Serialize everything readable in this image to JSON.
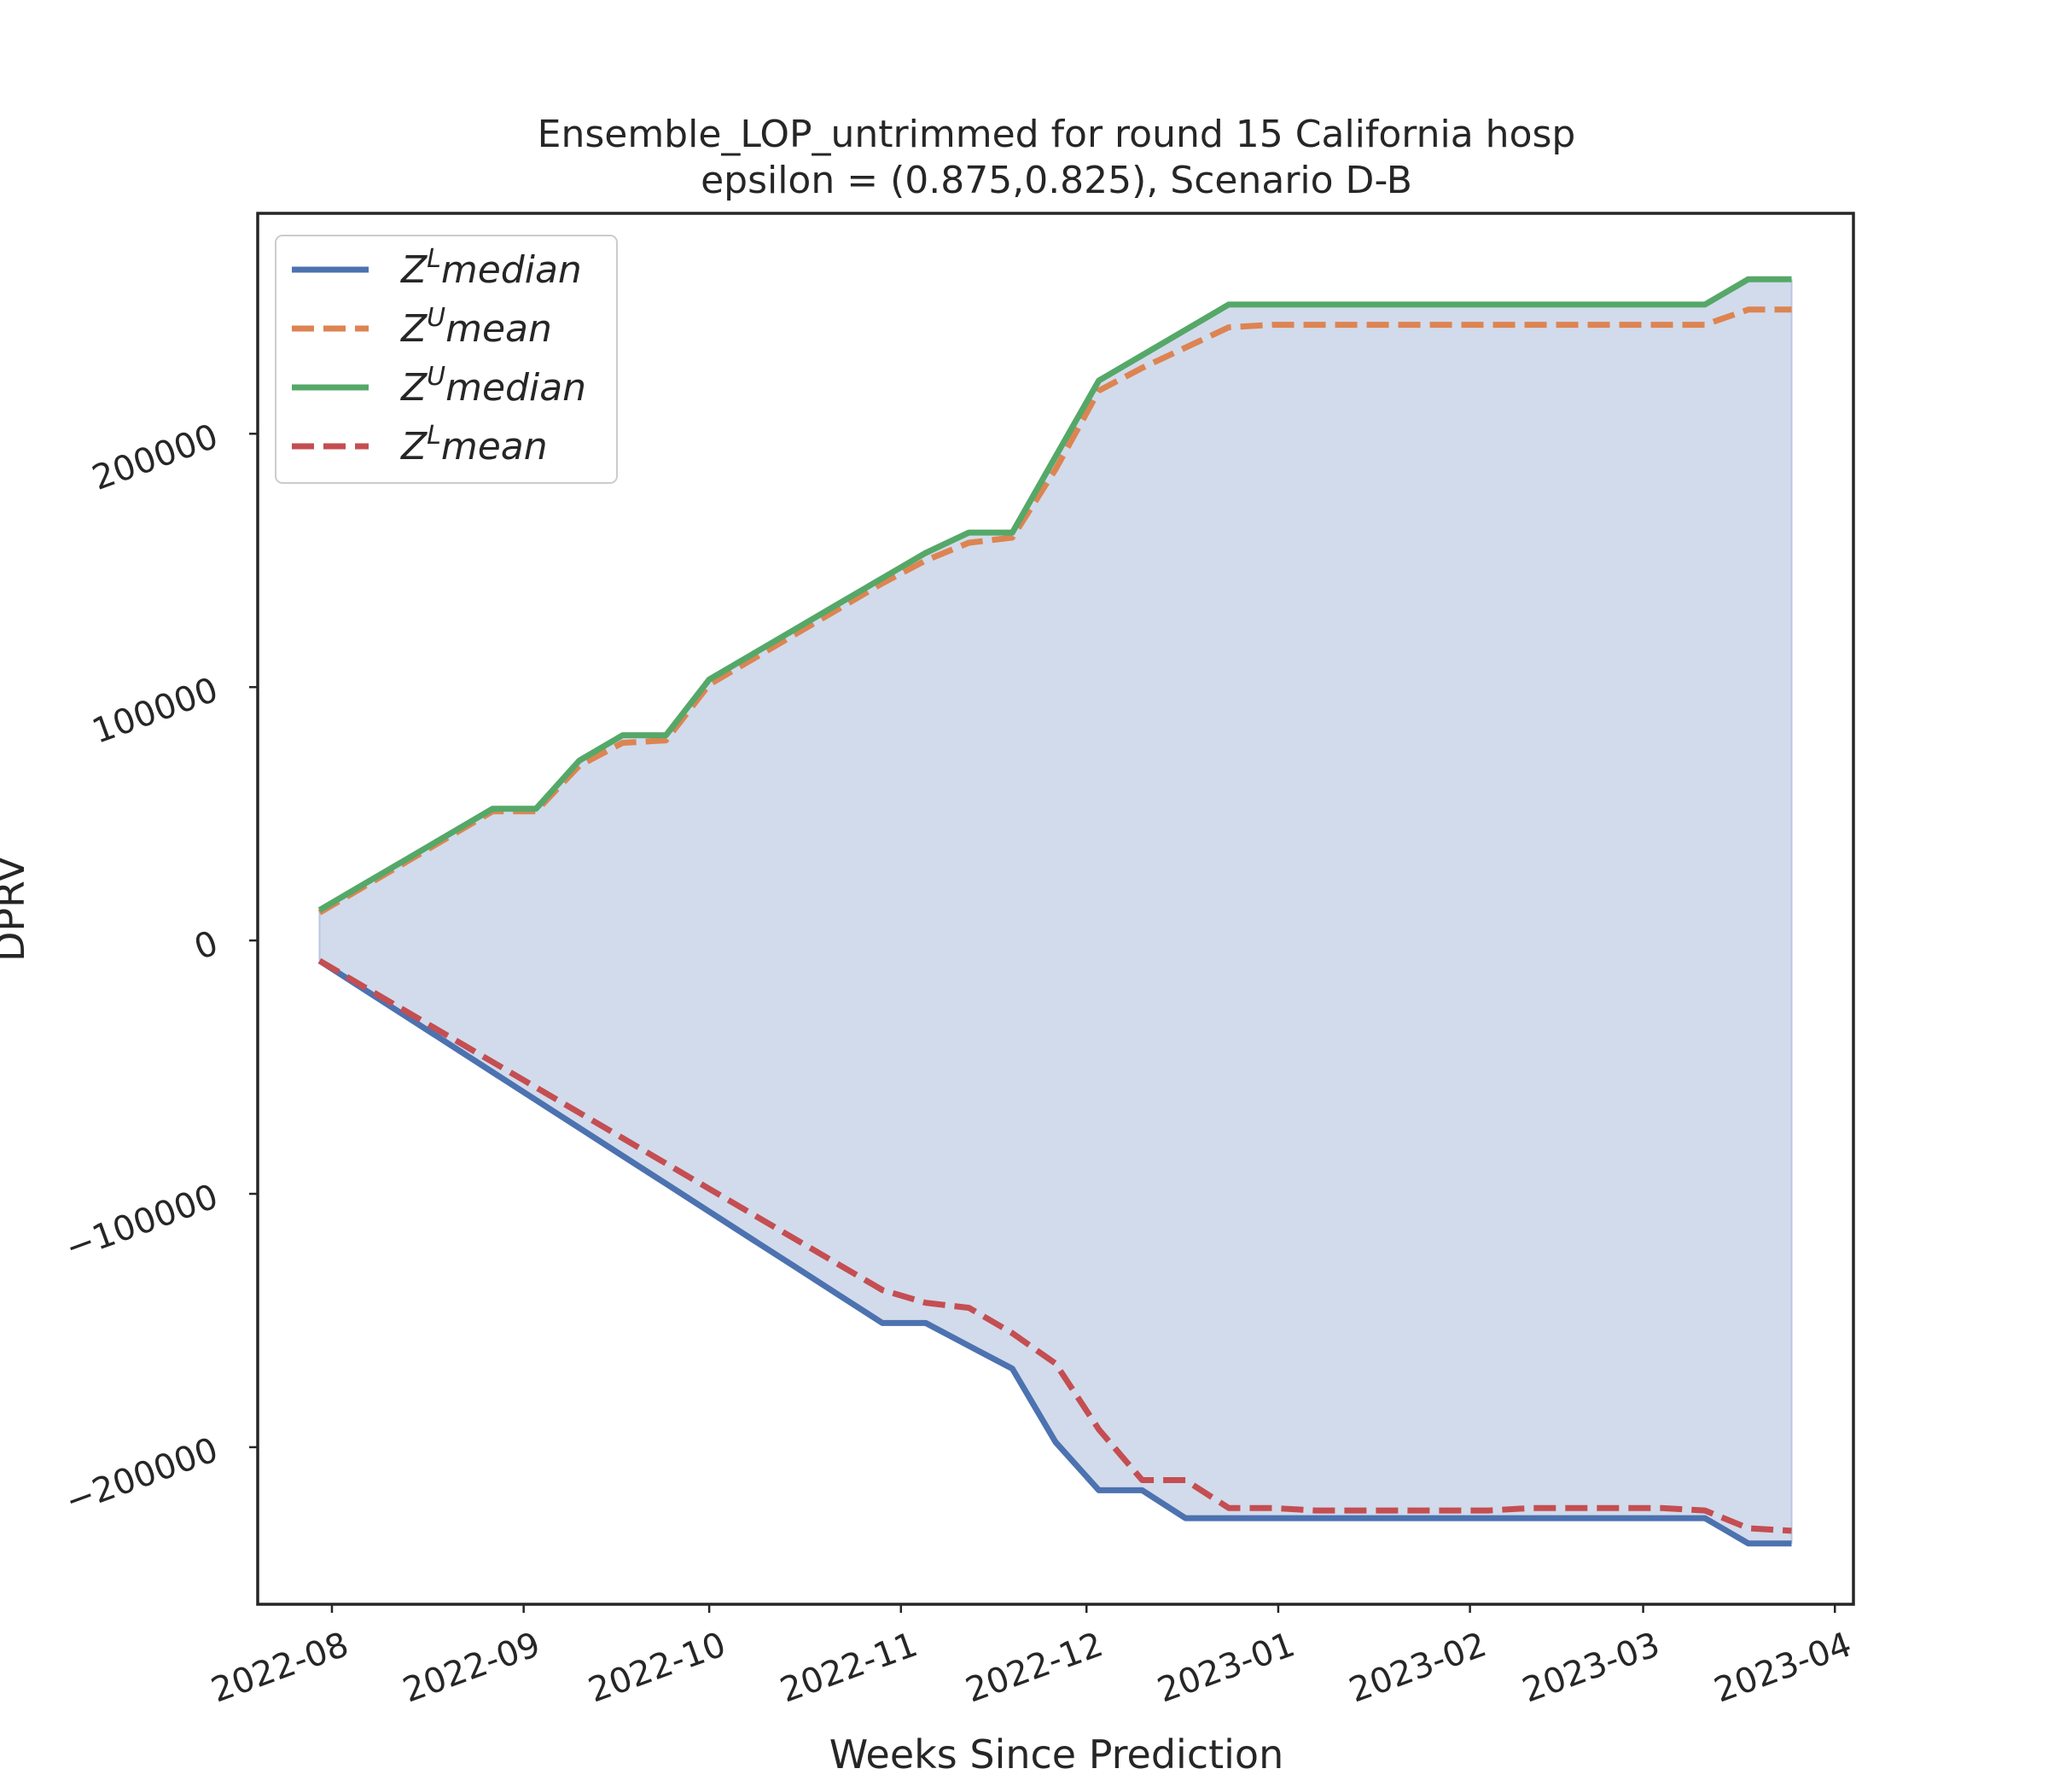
{
  "chart_data": {
    "type": "area",
    "title": "Ensemble_LOP_untrimmed for round 15 California  hosp",
    "subtitle": "epsilon = (0.875,0.825), Scenario D-B",
    "xlabel": "Weeks Since Prediction",
    "ylabel": "DPRV",
    "xlim": [
      "2022-07-20",
      "2023-04-04"
    ],
    "ylim": [
      -262000,
      287000
    ],
    "x_ticks": [
      "2022-08",
      "2022-09",
      "2022-10",
      "2022-11",
      "2022-12",
      "2023-01",
      "2023-02",
      "2023-03",
      "2023-04"
    ],
    "y_ticks": [
      {
        "value": 200000,
        "label": "200000"
      },
      {
        "value": 100000,
        "label": "100000"
      },
      {
        "value": 0,
        "label": "0"
      },
      {
        "value": -100000,
        "label": "−100000"
      },
      {
        "value": -200000,
        "label": "−200000"
      }
    ],
    "grid": false,
    "legend_position": "top-left",
    "fill_color": "#d2dbeb",
    "x": [
      "2022-07-30",
      "2022-08-06",
      "2022-08-13",
      "2022-08-20",
      "2022-08-27",
      "2022-09-03",
      "2022-09-10",
      "2022-09-17",
      "2022-09-24",
      "2022-10-01",
      "2022-10-08",
      "2022-10-15",
      "2022-10-22",
      "2022-10-29",
      "2022-11-05",
      "2022-11-12",
      "2022-11-19",
      "2022-11-26",
      "2022-12-03",
      "2022-12-10",
      "2022-12-17",
      "2022-12-24",
      "2022-12-31",
      "2023-01-07",
      "2023-01-14",
      "2023-01-21",
      "2023-01-28",
      "2023-02-04",
      "2023-02-11",
      "2023-02-18",
      "2023-02-25",
      "2023-03-04",
      "2023-03-11",
      "2023-03-18",
      "2023-03-25"
    ],
    "series": [
      {
        "name": "median",
        "sup": "L",
        "color": "#4c72b0",
        "dash": false,
        "values": [
          -8000,
          -19000,
          -30000,
          -41000,
          -52000,
          -63000,
          -74000,
          -85000,
          -96000,
          -107000,
          -118000,
          -129000,
          -140000,
          -151000,
          -151000,
          -160000,
          -169000,
          -198000,
          -217000,
          -217000,
          -228000,
          -228000,
          -228000,
          -228000,
          -228000,
          -228000,
          -228000,
          -228000,
          -228000,
          -228000,
          -228000,
          -228000,
          -228000,
          -238000,
          -238000
        ]
      },
      {
        "name": "mean",
        "sup": "U",
        "color": "#dd8452",
        "dash": true,
        "values": [
          11000,
          21000,
          31000,
          41000,
          51000,
          51000,
          69000,
          78000,
          79000,
          101000,
          111000,
          121000,
          131000,
          141000,
          150000,
          157000,
          159000,
          186000,
          217000,
          226000,
          234000,
          242000,
          243000,
          243000,
          243000,
          243000,
          243000,
          243000,
          243000,
          243000,
          243000,
          243000,
          243000,
          249000,
          249000
        ]
      },
      {
        "name": "median",
        "sup": "U",
        "color": "#55a868",
        "dash": false,
        "values": [
          12000,
          22000,
          32000,
          42000,
          52000,
          52000,
          71000,
          81000,
          81000,
          103000,
          113000,
          123000,
          133000,
          143000,
          153000,
          161000,
          161000,
          191000,
          221000,
          231000,
          241000,
          251000,
          251000,
          251000,
          251000,
          251000,
          251000,
          251000,
          251000,
          251000,
          251000,
          251000,
          251000,
          261000,
          261000
        ]
      },
      {
        "name": "mean",
        "sup": "L",
        "color": "#c44e52",
        "dash": true,
        "values": [
          -8000,
          -18000,
          -28000,
          -38000,
          -48000,
          -58000,
          -68000,
          -78000,
          -88000,
          -98000,
          -108000,
          -118000,
          -128000,
          -138000,
          -143000,
          -145000,
          -155000,
          -167000,
          -193000,
          -213000,
          -213000,
          -224000,
          -224000,
          -225000,
          -225000,
          -225000,
          -225000,
          -225000,
          -224000,
          -224000,
          -224000,
          -224000,
          -225000,
          -232000,
          -233000
        ]
      }
    ]
  }
}
